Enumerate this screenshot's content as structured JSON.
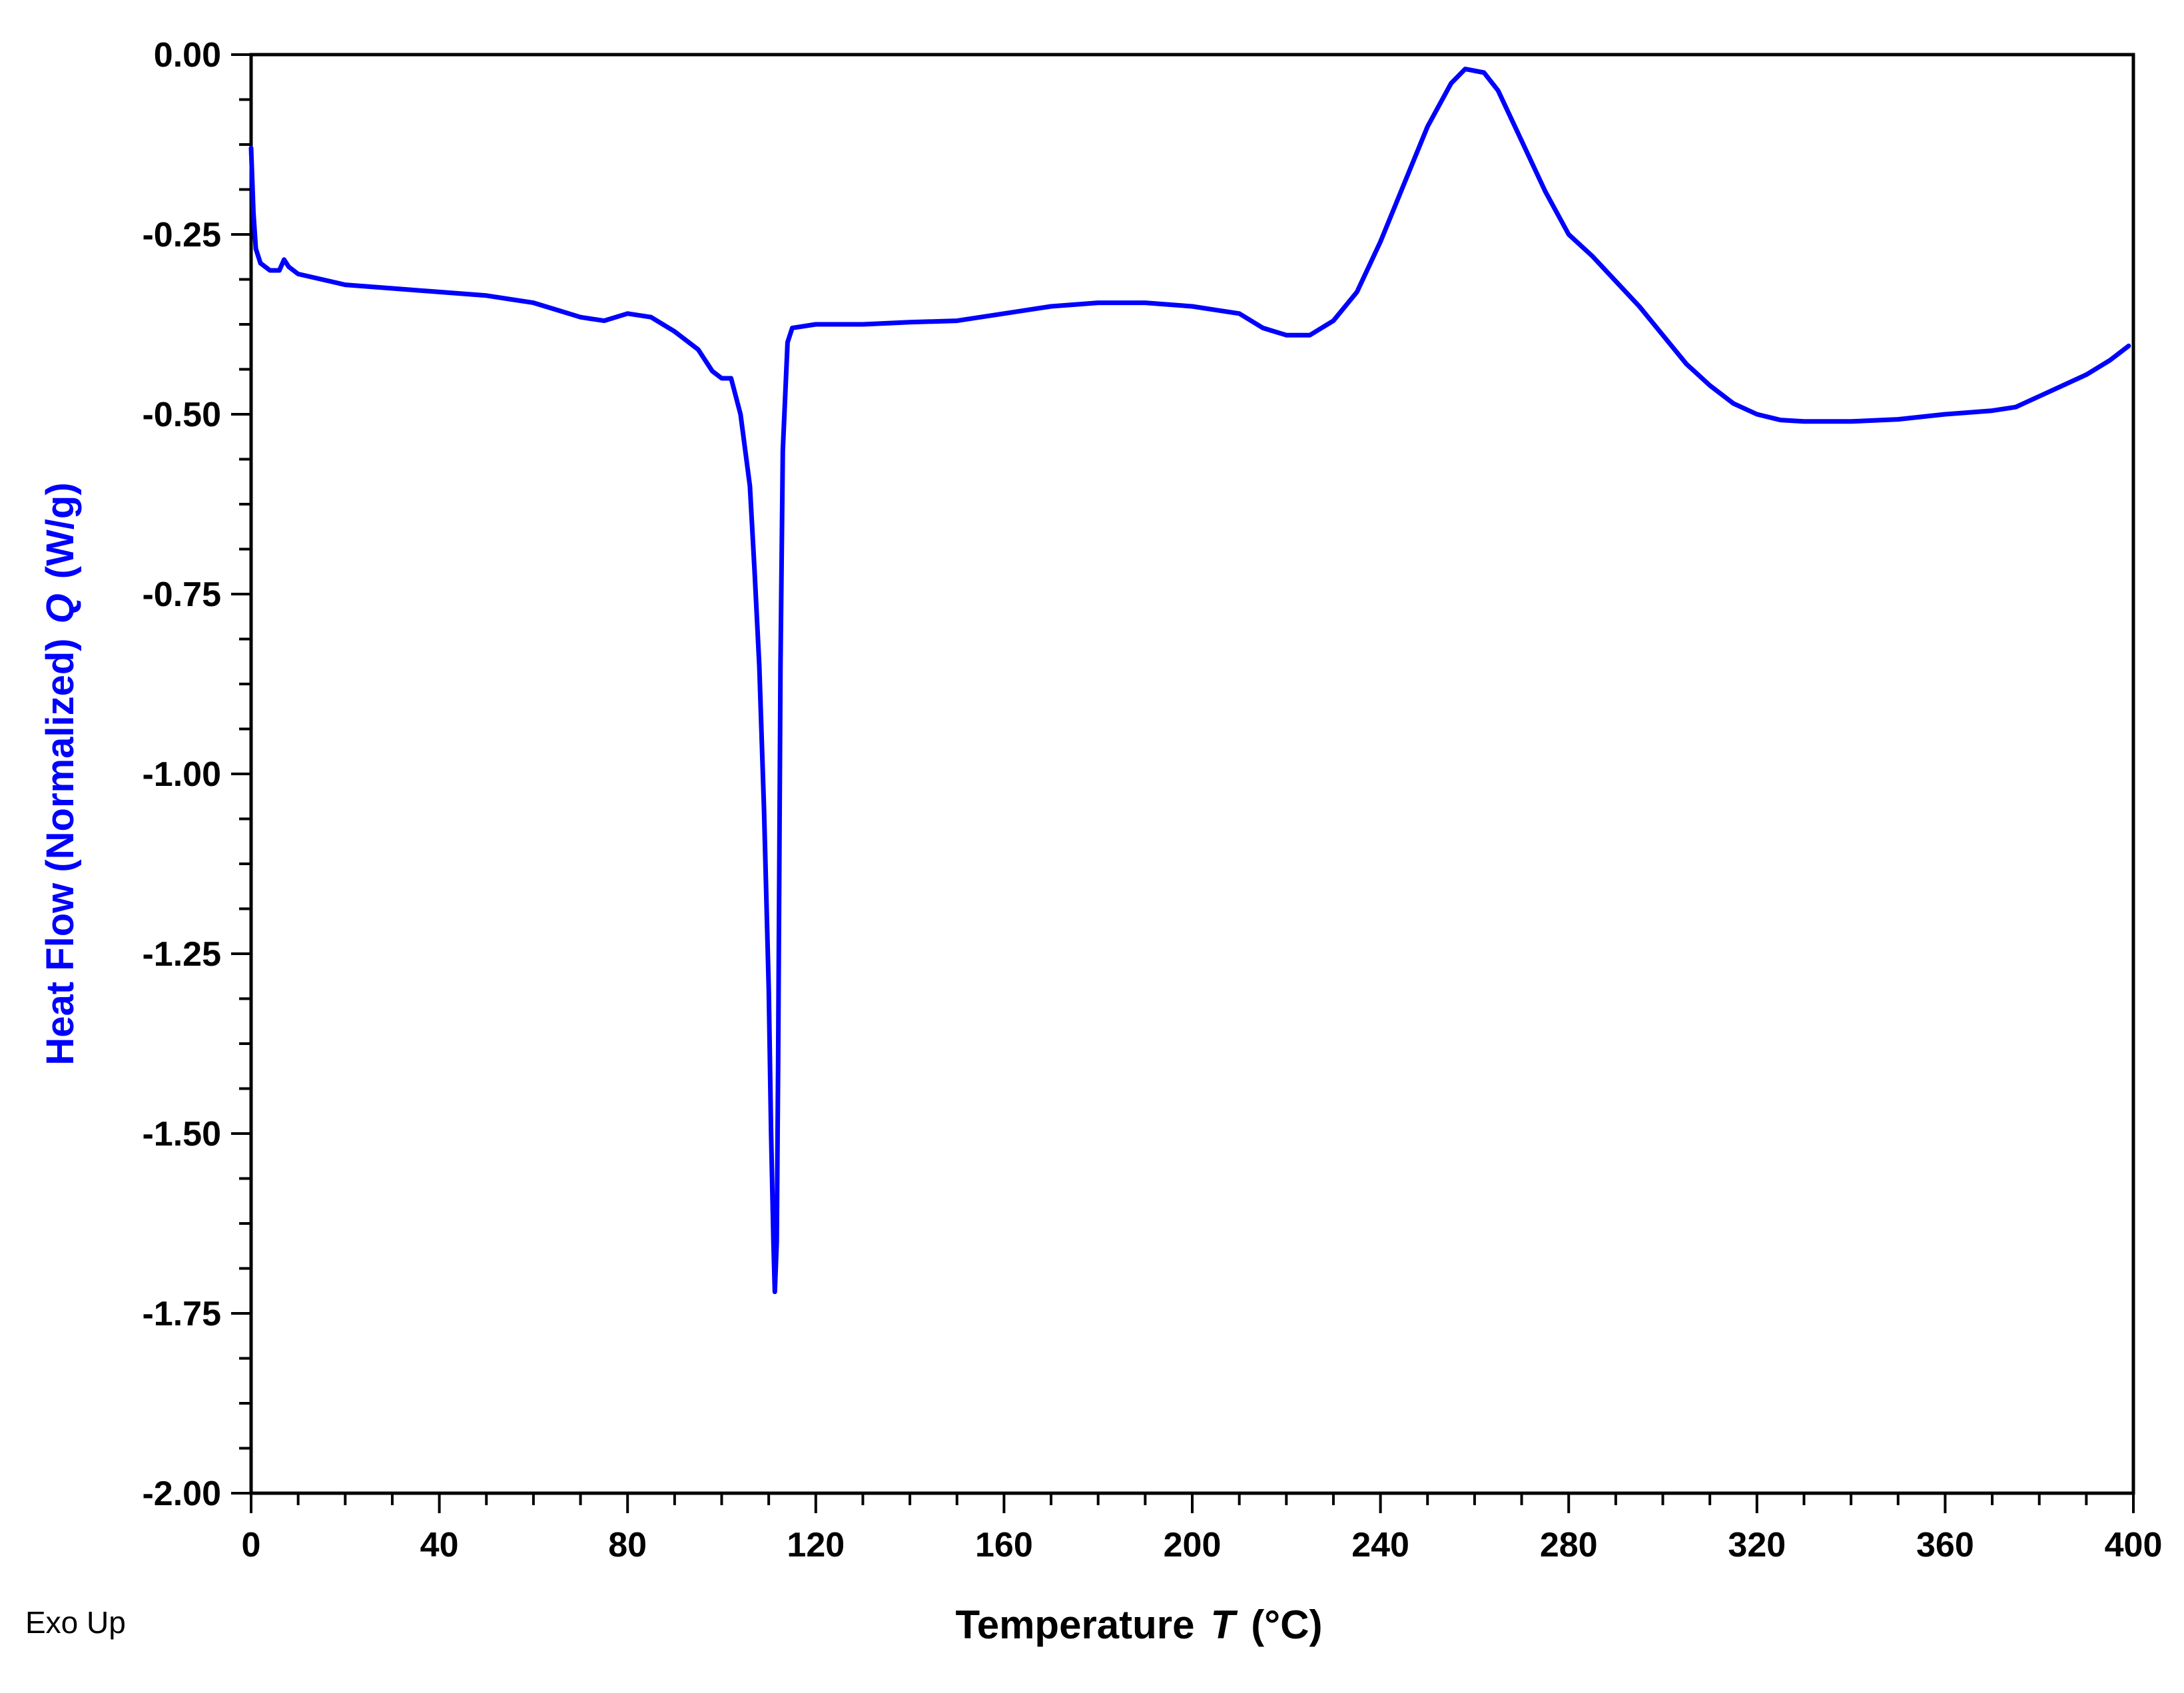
{
  "chart_data": {
    "type": "line",
    "xlabel": "Temperature",
    "xlabel_var": "T",
    "xlabel_unit": "(°C)",
    "ylabel": "Heat Flow (Normalized)",
    "ylabel_var": "Q",
    "ylabel_unit": "(W/g)",
    "xlim": [
      0,
      400
    ],
    "ylim": [
      -2.0,
      0.0
    ],
    "x_ticks": [
      0,
      40,
      80,
      120,
      160,
      200,
      240,
      280,
      320,
      360,
      400
    ],
    "x_tick_labels": [
      "0",
      "40",
      "80",
      "120",
      "160",
      "200",
      "240",
      "280",
      "320",
      "360",
      "400"
    ],
    "y_ticks": [
      0.0,
      -0.25,
      -0.5,
      -0.75,
      -1.0,
      -1.25,
      -1.5,
      -1.75,
      -2.0
    ],
    "y_tick_labels": [
      "0.00",
      "-0.25",
      "-0.50",
      "-0.75",
      "-1.00",
      "-1.25",
      "-1.50",
      "-1.75",
      "-2.00"
    ],
    "grid": false,
    "note": "Exo Up",
    "series": [
      {
        "color": "#0000ff",
        "points": [
          [
            0,
            -0.13
          ],
          [
            0.5,
            -0.22
          ],
          [
            1,
            -0.27
          ],
          [
            2,
            -0.29
          ],
          [
            4,
            -0.3
          ],
          [
            6,
            -0.3
          ],
          [
            7,
            -0.285
          ],
          [
            8,
            -0.295
          ],
          [
            10,
            -0.305
          ],
          [
            20,
            -0.32
          ],
          [
            30,
            -0.325
          ],
          [
            40,
            -0.33
          ],
          [
            50,
            -0.335
          ],
          [
            60,
            -0.345
          ],
          [
            65,
            -0.355
          ],
          [
            70,
            -0.365
          ],
          [
            75,
            -0.37
          ],
          [
            80,
            -0.36
          ],
          [
            85,
            -0.365
          ],
          [
            90,
            -0.385
          ],
          [
            95,
            -0.41
          ],
          [
            98,
            -0.44
          ],
          [
            100,
            -0.45
          ],
          [
            102,
            -0.45
          ],
          [
            104,
            -0.5
          ],
          [
            106,
            -0.6
          ],
          [
            107,
            -0.72
          ],
          [
            108,
            -0.85
          ],
          [
            109,
            -1.05
          ],
          [
            110,
            -1.3
          ],
          [
            110.5,
            -1.5
          ],
          [
            111,
            -1.65
          ],
          [
            111.3,
            -1.72
          ],
          [
            111.7,
            -1.65
          ],
          [
            112,
            -1.4
          ],
          [
            112.5,
            -0.85
          ],
          [
            113,
            -0.55
          ],
          [
            114,
            -0.4
          ],
          [
            115,
            -0.38
          ],
          [
            120,
            -0.375
          ],
          [
            130,
            -0.375
          ],
          [
            140,
            -0.372
          ],
          [
            150,
            -0.37
          ],
          [
            160,
            -0.36
          ],
          [
            170,
            -0.35
          ],
          [
            180,
            -0.345
          ],
          [
            190,
            -0.345
          ],
          [
            200,
            -0.35
          ],
          [
            205,
            -0.355
          ],
          [
            210,
            -0.36
          ],
          [
            215,
            -0.38
          ],
          [
            220,
            -0.39
          ],
          [
            225,
            -0.39
          ],
          [
            230,
            -0.37
          ],
          [
            235,
            -0.33
          ],
          [
            240,
            -0.26
          ],
          [
            245,
            -0.18
          ],
          [
            250,
            -0.1
          ],
          [
            255,
            -0.04
          ],
          [
            258,
            -0.02
          ],
          [
            262,
            -0.025
          ],
          [
            265,
            -0.05
          ],
          [
            270,
            -0.12
          ],
          [
            275,
            -0.19
          ],
          [
            280,
            -0.25
          ],
          [
            285,
            -0.28
          ],
          [
            290,
            -0.315
          ],
          [
            295,
            -0.35
          ],
          [
            300,
            -0.39
          ],
          [
            305,
            -0.43
          ],
          [
            310,
            -0.46
          ],
          [
            315,
            -0.485
          ],
          [
            320,
            -0.5
          ],
          [
            325,
            -0.508
          ],
          [
            330,
            -0.51
          ],
          [
            340,
            -0.51
          ],
          [
            350,
            -0.507
          ],
          [
            360,
            -0.5
          ],
          [
            370,
            -0.495
          ],
          [
            375,
            -0.49
          ],
          [
            380,
            -0.475
          ],
          [
            385,
            -0.46
          ],
          [
            390,
            -0.445
          ],
          [
            395,
            -0.425
          ],
          [
            399,
            -0.405
          ]
        ]
      }
    ]
  }
}
